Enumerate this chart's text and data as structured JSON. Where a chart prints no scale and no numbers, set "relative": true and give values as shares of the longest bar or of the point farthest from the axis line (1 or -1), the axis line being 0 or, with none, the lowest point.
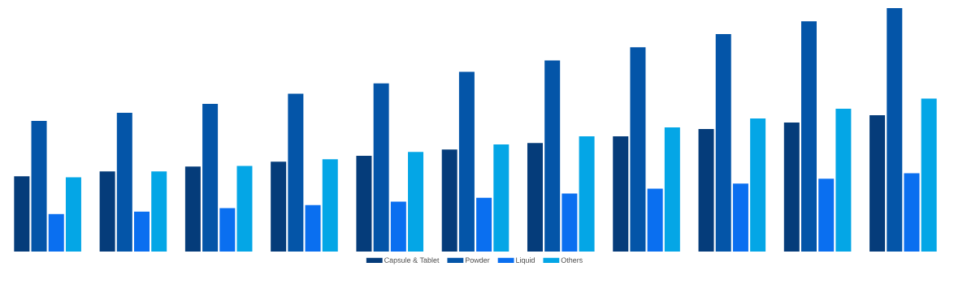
{
  "chart_data": {
    "type": "bar",
    "relative": true,
    "categories": [
      null,
      null,
      null,
      null,
      null,
      null,
      null,
      null,
      null,
      null,
      null
    ],
    "series": [
      {
        "name": "Capsule & Tablet",
        "color": "#053c7a",
        "values": [
          0.309,
          0.329,
          0.349,
          0.369,
          0.393,
          0.419,
          0.446,
          0.473,
          0.503,
          0.53,
          0.56
        ]
      },
      {
        "name": "Powder",
        "color": "#0455a8",
        "values": [
          0.537,
          0.57,
          0.607,
          0.648,
          0.691,
          0.738,
          0.785,
          0.839,
          0.893,
          0.946,
          1.0
        ]
      },
      {
        "name": "Liquid",
        "color": "#0a6ff0",
        "values": [
          0.154,
          0.164,
          0.178,
          0.191,
          0.205,
          0.221,
          0.238,
          0.258,
          0.279,
          0.299,
          0.322
        ]
      },
      {
        "name": "Others",
        "color": "#04a6e6",
        "values": [
          0.305,
          0.329,
          0.352,
          0.379,
          0.409,
          0.44,
          0.473,
          0.51,
          0.547,
          0.587,
          0.628
        ]
      }
    ],
    "legend": "bottom"
  }
}
